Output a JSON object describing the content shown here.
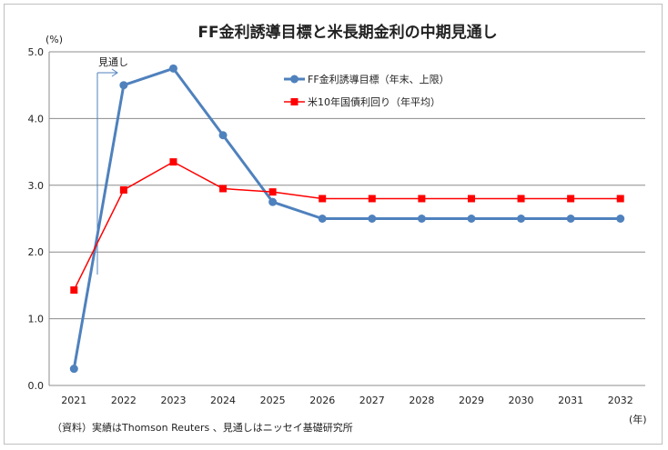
{
  "chart_data": {
    "type": "line",
    "title": "FF金利誘導目標と米長期金利の中期見通し",
    "ylabel": "(%)",
    "xlabel": "(年)",
    "ylim": [
      0,
      5
    ],
    "yticks": [
      "0.0",
      "1.0",
      "2.0",
      "3.0",
      "4.0",
      "5.0"
    ],
    "categories": [
      "2021",
      "2022",
      "2023",
      "2024",
      "2025",
      "2026",
      "2027",
      "2028",
      "2029",
      "2030",
      "2031",
      "2032"
    ],
    "series": [
      {
        "name": "FF金利誘導目標（年末、上限）",
        "color": "#4F81BD",
        "marker": "circle",
        "values": [
          0.25,
          4.5,
          4.75,
          3.75,
          2.75,
          2.5,
          2.5,
          2.5,
          2.5,
          2.5,
          2.5,
          2.5
        ]
      },
      {
        "name": "米10年国債利回り（年平均）",
        "color": "#FF0000",
        "marker": "square",
        "values": [
          1.43,
          2.93,
          3.35,
          2.95,
          2.9,
          2.8,
          2.8,
          2.8,
          2.8,
          2.8,
          2.8,
          2.8
        ]
      }
    ],
    "annotation": "見通し",
    "grid": true,
    "legend_position": "top-right"
  },
  "footnote": "（資料）実績はThomson Reuters 、見通しはニッセイ基礎研究所"
}
